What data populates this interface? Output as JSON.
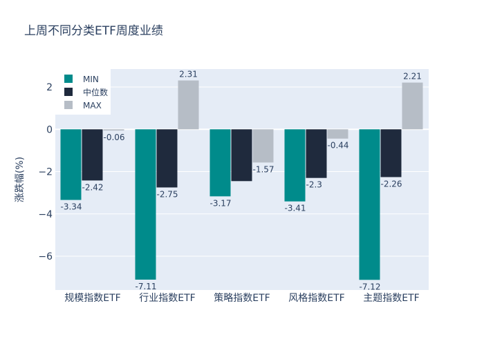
{
  "chart_data": {
    "type": "bar",
    "title": "上周不同分类ETF周度业绩",
    "xlabel": "",
    "ylabel": "涨跌幅(%)",
    "ylim": [
      -7.6,
      2.85
    ],
    "yticks": [
      2,
      0,
      -2,
      -4,
      -6
    ],
    "ytick_labels": [
      "2",
      "0",
      "−2",
      "−4",
      "−6"
    ],
    "categories": [
      "规模指数ETF",
      "行业指数ETF",
      "策略指数ETF",
      "风格指数ETF",
      "主题指数ETF"
    ],
    "series": [
      {
        "name": "MIN",
        "color": "#008B8B",
        "values": [
          -3.34,
          -7.11,
          -3.17,
          -3.41,
          -7.12
        ]
      },
      {
        "name": "中位数",
        "color": "#1F2A3D",
        "values": [
          -2.42,
          -2.75,
          -2.45,
          -2.3,
          -2.26
        ]
      },
      {
        "name": "MAX",
        "color": "#B6BDC6",
        "values": [
          -0.06,
          2.31,
          -1.57,
          -0.44,
          2.21
        ]
      }
    ],
    "data_labels": [
      [
        "-3.34",
        "-2.42",
        "-0.06"
      ],
      [
        "-7.11",
        "-2.75",
        "2.31"
      ],
      [
        "-3.17",
        "",
        "-1.57"
      ],
      [
        "-3.41",
        "-2.3",
        "-0.44"
      ],
      [
        "-7.12",
        "-2.26",
        "2.21"
      ]
    ],
    "legend_position": "top-left",
    "grid": true,
    "plot_background": "#E5ECF6"
  }
}
